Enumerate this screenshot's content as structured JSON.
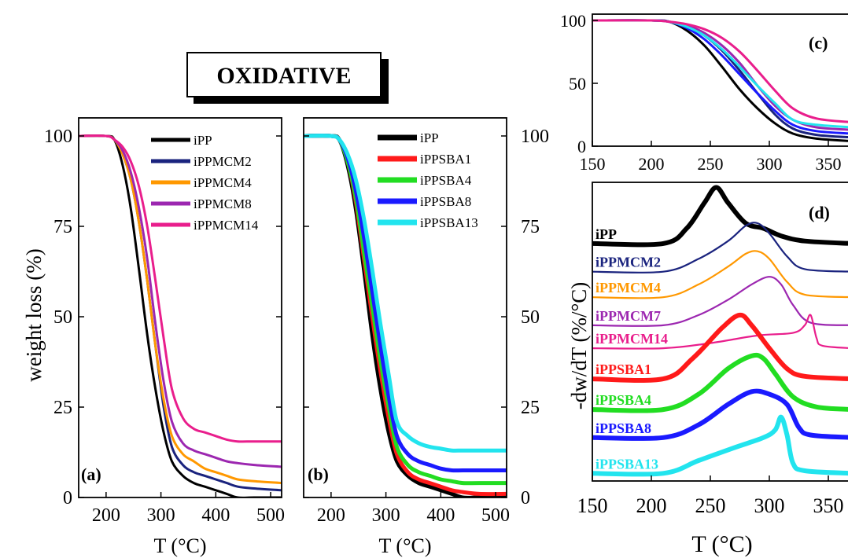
{
  "title_box": {
    "label": "OXIDATIVE"
  },
  "panel_a": {
    "panel_label": "(a)",
    "ylabel": "weight loss (%)",
    "xlabel": "T (°C)",
    "chart_data": {
      "type": "line",
      "title": "",
      "xlabel": "T (°C)",
      "ylabel": "weight loss (%)",
      "xlim": [
        150,
        520
      ],
      "ylim": [
        0,
        105
      ],
      "x_ticks": [
        200,
        300,
        400,
        500
      ],
      "y_ticks": [
        0,
        25,
        50,
        75,
        100
      ],
      "legend_position": "top-right",
      "series": [
        {
          "name": "iPP",
          "color": "#000000",
          "x": [
            150,
            200,
            215,
            230,
            245,
            260,
            275,
            290,
            305,
            320,
            340,
            360,
            380,
            400,
            420,
            440,
            470,
            520
          ],
          "y": [
            100,
            100,
            99,
            92,
            80,
            63,
            45,
            30,
            18,
            10,
            6,
            4,
            3,
            2,
            1,
            0,
            0,
            0
          ]
        },
        {
          "name": "iPPMCM2",
          "color": "#1a237e",
          "x": [
            150,
            200,
            215,
            230,
            245,
            260,
            275,
            290,
            305,
            320,
            340,
            360,
            380,
            400,
            420,
            440,
            470,
            520
          ],
          "y": [
            100,
            100,
            99,
            95,
            88,
            76,
            60,
            42,
            25,
            14,
            9,
            7,
            6,
            5,
            4,
            3,
            2.5,
            2
          ]
        },
        {
          "name": "iPPMCM4",
          "color": "#ff9800",
          "x": [
            150,
            200,
            215,
            230,
            245,
            260,
            275,
            290,
            305,
            320,
            340,
            360,
            380,
            400,
            420,
            440,
            470,
            520
          ],
          "y": [
            100,
            100,
            99,
            95,
            88,
            76,
            60,
            42,
            27,
            17,
            12,
            10,
            8,
            7,
            6,
            5,
            4.5,
            4
          ]
        },
        {
          "name": "iPPMCM8",
          "color": "#9c27b0",
          "x": [
            150,
            200,
            215,
            230,
            245,
            260,
            275,
            290,
            305,
            320,
            340,
            360,
            380,
            400,
            420,
            440,
            470,
            520
          ],
          "y": [
            100,
            100,
            99,
            96,
            90,
            80,
            66,
            48,
            32,
            21,
            15,
            13,
            12,
            11,
            10,
            9.5,
            9,
            8.5
          ]
        },
        {
          "name": "iPPMCM14",
          "color": "#e91e8c",
          "x": [
            150,
            200,
            215,
            230,
            245,
            260,
            275,
            290,
            305,
            320,
            340,
            360,
            380,
            400,
            420,
            440,
            470,
            520
          ],
          "y": [
            100,
            100,
            99,
            97,
            93,
            86,
            75,
            60,
            44,
            30,
            22,
            19,
            18,
            17,
            16,
            15.5,
            15.5,
            15.5
          ]
        }
      ]
    }
  },
  "panel_b": {
    "panel_label": "(b)",
    "xlabel": "T (°C)",
    "chart_data": {
      "type": "line",
      "title": "",
      "xlabel": "T (°C)",
      "ylabel": "",
      "xlim": [
        150,
        520
      ],
      "ylim": [
        0,
        105
      ],
      "x_ticks": [
        200,
        300,
        400,
        500
      ],
      "y_ticks": [
        0,
        25,
        50,
        75,
        100
      ],
      "legend_position": "top-right",
      "series": [
        {
          "name": "iPP",
          "color": "#000000",
          "x": [
            150,
            200,
            215,
            230,
            245,
            260,
            275,
            290,
            305,
            320,
            340,
            360,
            380,
            400,
            420,
            440,
            470,
            520
          ],
          "y": [
            100,
            100,
            99,
            92,
            80,
            63,
            45,
            30,
            18,
            10,
            6,
            4,
            3,
            2,
            1,
            0,
            0,
            0
          ]
        },
        {
          "name": "iPPSBA1",
          "color": "#ff1a1a",
          "x": [
            150,
            200,
            215,
            230,
            245,
            260,
            275,
            290,
            305,
            320,
            340,
            360,
            380,
            400,
            420,
            440,
            470,
            520
          ],
          "y": [
            100,
            100,
            99,
            93,
            82,
            66,
            50,
            35,
            22,
            12,
            7,
            5,
            4,
            3,
            2,
            1.5,
            1,
            1
          ]
        },
        {
          "name": "iPPSBA4",
          "color": "#22dd22",
          "x": [
            150,
            200,
            215,
            230,
            245,
            260,
            275,
            290,
            305,
            320,
            340,
            360,
            380,
            400,
            420,
            440,
            470,
            520
          ],
          "y": [
            100,
            100,
            99,
            93,
            83,
            68,
            53,
            38,
            25,
            14,
            9,
            7,
            6,
            5,
            4.5,
            4,
            4,
            4
          ]
        },
        {
          "name": "iPPSBA8",
          "color": "#1a1aff",
          "x": [
            150,
            200,
            215,
            230,
            245,
            260,
            275,
            290,
            305,
            320,
            340,
            360,
            380,
            400,
            420,
            440,
            470,
            520
          ],
          "y": [
            100,
            100,
            99,
            94,
            85,
            72,
            57,
            42,
            28,
            17,
            12,
            10,
            9,
            8,
            7.5,
            7.5,
            7.5,
            7.5
          ]
        },
        {
          "name": "iPPSBA13",
          "color": "#22e4ee",
          "x": [
            150,
            200,
            215,
            230,
            245,
            260,
            275,
            290,
            305,
            320,
            340,
            360,
            380,
            400,
            420,
            440,
            470,
            520
          ],
          "y": [
            100,
            100,
            99,
            95,
            88,
            77,
            63,
            48,
            34,
            21,
            17,
            15,
            14,
            13.5,
            13,
            13,
            13,
            13
          ]
        }
      ]
    }
  },
  "panel_c": {
    "panel_label": "(c)",
    "chart_data": {
      "type": "line",
      "title": "",
      "xlabel": "",
      "ylabel": "",
      "xlim": [
        150,
        370
      ],
      "ylim": [
        0,
        105
      ],
      "x_ticks": [
        150,
        200,
        250,
        300,
        350
      ],
      "y_ticks": [
        0,
        50,
        100
      ],
      "series": [
        {
          "color": "#000000",
          "x": [
            150,
            200,
            215,
            230,
            245,
            260,
            275,
            290,
            305,
            320,
            340,
            370
          ],
          "y": [
            100,
            100,
            99,
            92,
            80,
            63,
            45,
            30,
            18,
            10,
            6,
            4
          ]
        },
        {
          "color": "#1a237e",
          "x": [
            150,
            200,
            215,
            230,
            245,
            260,
            275,
            290,
            305,
            320,
            340,
            370
          ],
          "y": [
            100,
            100,
            99,
            95,
            88,
            76,
            60,
            42,
            25,
            14,
            9,
            7
          ]
        },
        {
          "color": "#9c27b0",
          "x": [
            150,
            200,
            215,
            230,
            245,
            260,
            275,
            290,
            305,
            320,
            340,
            370
          ],
          "y": [
            100,
            100,
            99,
            96,
            90,
            80,
            66,
            48,
            32,
            21,
            15,
            13
          ]
        },
        {
          "color": "#1a1aff",
          "x": [
            150,
            200,
            215,
            230,
            245,
            260,
            275,
            290,
            305,
            320,
            340,
            370
          ],
          "y": [
            100,
            100,
            99,
            94,
            85,
            72,
            57,
            42,
            28,
            17,
            12,
            10
          ]
        },
        {
          "color": "#22e4ee",
          "x": [
            150,
            200,
            215,
            230,
            245,
            260,
            275,
            290,
            305,
            320,
            340,
            370
          ],
          "y": [
            100,
            100,
            99,
            95,
            88,
            77,
            63,
            48,
            34,
            21,
            17,
            15
          ]
        },
        {
          "color": "#e91e8c",
          "x": [
            150,
            200,
            215,
            230,
            245,
            260,
            275,
            290,
            305,
            320,
            340,
            370
          ],
          "y": [
            100,
            100,
            99,
            97,
            93,
            86,
            75,
            60,
            44,
            30,
            22,
            19
          ]
        }
      ]
    }
  },
  "panel_d": {
    "panel_label": "(d)",
    "ylabel": "-dw/dT (%/°C)",
    "xlabel": "T (°C)",
    "chart_data": {
      "type": "line",
      "title": "",
      "xlabel": "T (°C)",
      "ylabel": "-dw/dT (%/°C)",
      "xlim": [
        150,
        370
      ],
      "x_ticks": [
        150,
        200,
        250,
        300,
        350
      ],
      "series": [
        {
          "name": "iPP",
          "color": "#000000",
          "baseline": 9.0,
          "x": [
            150,
            210,
            230,
            245,
            255,
            265,
            280,
            295,
            310,
            330,
            370
          ],
          "y": [
            0,
            0,
            0.6,
            1.6,
            2.2,
            1.6,
            0.8,
            0.6,
            0.3,
            0.1,
            0
          ]
        },
        {
          "name": "iPPMCM2",
          "color": "#1a237e",
          "baseline": 7.9,
          "x": [
            150,
            210,
            240,
            265,
            280,
            290,
            300,
            315,
            330,
            370
          ],
          "y": [
            0,
            0,
            0.5,
            1.2,
            1.8,
            1.9,
            1.5,
            0.6,
            0.1,
            0
          ]
        },
        {
          "name": "iPPMCM4",
          "color": "#ff9800",
          "baseline": 6.9,
          "x": [
            150,
            210,
            240,
            265,
            280,
            290,
            300,
            315,
            330,
            370
          ],
          "y": [
            0,
            0,
            0.5,
            1.2,
            1.7,
            1.8,
            1.5,
            0.6,
            0.1,
            0
          ]
        },
        {
          "name": "iPPMCM7",
          "color": "#9c27b0",
          "baseline": 5.8,
          "x": [
            150,
            210,
            240,
            265,
            285,
            300,
            310,
            320,
            335,
            370
          ],
          "y": [
            0,
            0,
            0.4,
            1.0,
            1.6,
            1.9,
            1.6,
            0.8,
            0.1,
            0
          ]
        },
        {
          "name": "iPPMCM14",
          "color": "#e91e8c",
          "baseline": 4.9,
          "x": [
            150,
            210,
            250,
            290,
            320,
            330,
            335,
            340,
            345,
            370
          ],
          "y": [
            0,
            0,
            0.2,
            0.5,
            0.6,
            0.9,
            1.3,
            0.4,
            0.1,
            0
          ]
        },
        {
          "name": "iPPSBA1",
          "color": "#ff1a1a",
          "baseline": 3.7,
          "x": [
            150,
            210,
            235,
            260,
            275,
            285,
            300,
            315,
            330,
            370
          ],
          "y": [
            0,
            0,
            0.8,
            2.0,
            2.5,
            2.1,
            1.2,
            0.4,
            0.1,
            0
          ]
        },
        {
          "name": "iPPSBA4",
          "color": "#22dd22",
          "baseline": 2.5,
          "x": [
            150,
            210,
            240,
            265,
            285,
            295,
            305,
            320,
            340,
            370
          ],
          "y": [
            0,
            0,
            0.6,
            1.6,
            2.1,
            2.0,
            1.4,
            0.5,
            0.1,
            0
          ]
        },
        {
          "name": "iPPSBA8",
          "color": "#1a1aff",
          "baseline": 1.4,
          "x": [
            150,
            210,
            240,
            265,
            285,
            300,
            315,
            325,
            335,
            370
          ],
          "y": [
            0,
            0,
            0.5,
            1.3,
            1.8,
            1.7,
            1.3,
            0.4,
            0.1,
            0
          ]
        },
        {
          "name": "iPPSBA13",
          "color": "#22e4ee",
          "baseline": 0.0,
          "x": [
            150,
            210,
            240,
            270,
            295,
            305,
            310,
            315,
            320,
            330,
            370
          ],
          "y": [
            0,
            0,
            0.5,
            1.0,
            1.4,
            1.7,
            2.2,
            1.5,
            0.4,
            0.1,
            0
          ]
        }
      ]
    }
  }
}
